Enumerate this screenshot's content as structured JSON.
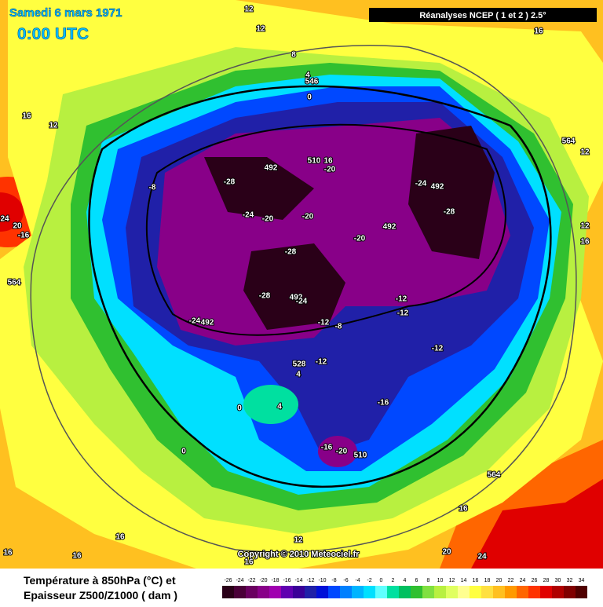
{
  "header": {
    "date": "Samedi 6 mars 1971",
    "time": "0:00 UTC",
    "source": "Réanalyses NCEP ( 1 et 2 ) 2.5°"
  },
  "copyright": "Copyright © 2010 Meteociel.fr",
  "legend": {
    "title_line1": "Température à 850hPa (°C) et",
    "title_line2": "Epaisseur Z500/Z1000 ( dam )",
    "ticks": [
      -26,
      -24,
      -22,
      -20,
      -18,
      -16,
      -14,
      -12,
      -10,
      -8,
      -6,
      -4,
      -2,
      0,
      2,
      4,
      6,
      8,
      10,
      12,
      14,
      16,
      18,
      20,
      22,
      24,
      26,
      28,
      30,
      32,
      34
    ],
    "colors": [
      "#2a0018",
      "#4a0038",
      "#6a0060",
      "#880088",
      "#a000b0",
      "#6000b0",
      "#3a0098",
      "#2020a8",
      "#0010d8",
      "#0048ff",
      "#0080ff",
      "#00b4ff",
      "#00e0ff",
      "#60ffff",
      "#00e0a0",
      "#00c060",
      "#30c030",
      "#80e040",
      "#b8f040",
      "#e0ff60",
      "#ffff90",
      "#ffff40",
      "#ffe040",
      "#ffc020",
      "#ff9a00",
      "#ff6600",
      "#ff3300",
      "#e00000",
      "#b00000",
      "#800000",
      "#500000"
    ]
  },
  "map_labels": [
    "12",
    "12",
    "8",
    "16",
    "4",
    "546",
    "0",
    "16",
    "12",
    "564",
    "12",
    "-28",
    "492",
    "510",
    "16",
    "-20",
    "-24",
    "492",
    "-8",
    "-28",
    "-24",
    "-20",
    "-20",
    "492",
    "-20",
    "24",
    "20",
    "-16",
    "12",
    "16",
    "564",
    "-28",
    "-28",
    "492",
    "-24",
    "-12",
    "-24",
    "492",
    "-12",
    "-8",
    "-12",
    "-12",
    "528",
    "-12",
    "4",
    "0",
    "4",
    "-16",
    "0",
    "-16",
    "-20",
    "510",
    "564",
    "16",
    "12",
    "16",
    "16",
    "16",
    "20",
    "24",
    "16"
  ]
}
